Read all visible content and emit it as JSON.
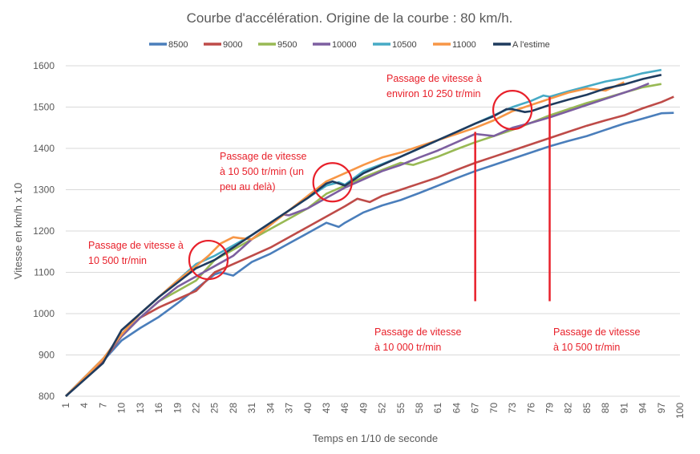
{
  "chart_data": {
    "type": "line",
    "title": "Courbe d'accélération. Origine de la courbe : 80 km/h.",
    "xlabel": "Temps en 1/10 de seconde",
    "ylabel": "Vitesse en km/h x 10",
    "xlim": [
      1,
      100
    ],
    "ylim": [
      800,
      1600
    ],
    "yticks": [
      800,
      900,
      1000,
      1100,
      1200,
      1300,
      1400,
      1500,
      1600
    ],
    "xticks": [
      1,
      4,
      7,
      10,
      13,
      16,
      19,
      22,
      25,
      28,
      31,
      34,
      37,
      40,
      43,
      46,
      49,
      52,
      55,
      58,
      61,
      64,
      67,
      70,
      73,
      76,
      79,
      82,
      85,
      88,
      91,
      94,
      97,
      100
    ],
    "grid": true,
    "legend_position": "top",
    "series": [
      {
        "name": "8500",
        "color": "#4a7ebb",
        "x": [
          1,
          4,
          7,
          10,
          13,
          16,
          19,
          22,
          25,
          26,
          28,
          31,
          34,
          37,
          40,
          43,
          45,
          46,
          49,
          52,
          55,
          58,
          61,
          64,
          67,
          70,
          73,
          76,
          79,
          82,
          85,
          88,
          91,
          94,
          97,
          99
        ],
        "y": [
          800,
          845,
          885,
          935,
          965,
          992,
          1025,
          1060,
          1095,
          1100,
          1092,
          1125,
          1145,
          1170,
          1195,
          1220,
          1210,
          1220,
          1245,
          1262,
          1275,
          1292,
          1310,
          1328,
          1345,
          1360,
          1375,
          1390,
          1405,
          1418,
          1430,
          1445,
          1460,
          1472,
          1485,
          1486
        ]
      },
      {
        "name": "9000",
        "color": "#be4b48",
        "x": [
          1,
          4,
          7,
          10,
          13,
          16,
          19,
          22,
          25,
          28,
          31,
          34,
          37,
          40,
          43,
          46,
          48,
          50,
          52,
          55,
          58,
          61,
          64,
          67,
          70,
          73,
          76,
          79,
          82,
          85,
          88,
          91,
          94,
          97,
          99
        ],
        "y": [
          800,
          845,
          885,
          945,
          990,
          1015,
          1035,
          1055,
          1100,
          1120,
          1140,
          1160,
          1185,
          1210,
          1235,
          1260,
          1278,
          1270,
          1285,
          1300,
          1315,
          1330,
          1348,
          1365,
          1380,
          1395,
          1410,
          1425,
          1440,
          1455,
          1468,
          1480,
          1497,
          1512,
          1525
        ]
      },
      {
        "name": "9500",
        "color": "#98b954",
        "x": [
          1,
          4,
          7,
          10,
          13,
          16,
          19,
          22,
          25,
          28,
          31,
          34,
          37,
          40,
          43,
          46,
          49,
          52,
          55,
          57,
          61,
          64,
          67,
          70,
          73,
          76,
          79,
          82,
          85,
          88,
          91,
          94,
          97
        ],
        "y": [
          800,
          845,
          890,
          945,
          990,
          1030,
          1055,
          1080,
          1130,
          1155,
          1180,
          1205,
          1230,
          1255,
          1290,
          1310,
          1330,
          1348,
          1365,
          1360,
          1380,
          1398,
          1415,
          1430,
          1445,
          1462,
          1480,
          1495,
          1510,
          1522,
          1535,
          1548,
          1556
        ]
      },
      {
        "name": "10000",
        "color": "#7d5fa0",
        "x": [
          1,
          4,
          7,
          10,
          13,
          16,
          19,
          22,
          25,
          28,
          31,
          34,
          36,
          37,
          40,
          43,
          46,
          49,
          52,
          55,
          58,
          61,
          64,
          67,
          70,
          73,
          76,
          79,
          82,
          85,
          88,
          91,
          93,
          95
        ],
        "y": [
          800,
          845,
          890,
          945,
          990,
          1030,
          1065,
          1090,
          1115,
          1140,
          1180,
          1215,
          1240,
          1238,
          1255,
          1280,
          1305,
          1325,
          1345,
          1360,
          1378,
          1395,
          1415,
          1435,
          1430,
          1450,
          1462,
          1475,
          1490,
          1505,
          1520,
          1535,
          1545,
          1557
        ]
      },
      {
        "name": "10500",
        "color": "#46aac5",
        "x": [
          1,
          4,
          7,
          10,
          13,
          16,
          19,
          22,
          25,
          28,
          31,
          34,
          37,
          40,
          43,
          45,
          46,
          49,
          52,
          55,
          58,
          61,
          64,
          67,
          70,
          73,
          76,
          78,
          79,
          82,
          85,
          88,
          91,
          94,
          97
        ],
        "y": [
          800,
          845,
          890,
          950,
          1000,
          1040,
          1080,
          1120,
          1140,
          1165,
          1190,
          1220,
          1250,
          1280,
          1310,
          1318,
          1312,
          1345,
          1362,
          1380,
          1400,
          1420,
          1440,
          1460,
          1480,
          1500,
          1515,
          1528,
          1525,
          1538,
          1550,
          1562,
          1570,
          1582,
          1590
        ]
      },
      {
        "name": "11000",
        "color": "#f79646",
        "x": [
          1,
          4,
          7,
          10,
          13,
          16,
          19,
          22,
          24,
          26,
          28,
          29,
          31,
          34,
          37,
          40,
          43,
          46,
          49,
          52,
          55,
          58,
          61,
          64,
          67,
          70,
          73,
          76,
          79,
          82,
          85,
          88,
          91
        ],
        "y": [
          800,
          845,
          890,
          950,
          1000,
          1040,
          1080,
          1115,
          1140,
          1170,
          1185,
          1183,
          1180,
          1215,
          1250,
          1285,
          1320,
          1340,
          1360,
          1378,
          1390,
          1405,
          1420,
          1435,
          1450,
          1468,
          1490,
          1505,
          1520,
          1535,
          1545,
          1540,
          1560
        ]
      },
      {
        "name": "A l'estime",
        "color": "#1f3b5e",
        "x": [
          1,
          4,
          7,
          10,
          13,
          16,
          19,
          22,
          25,
          28,
          31,
          34,
          37,
          40,
          43,
          44,
          46,
          49,
          52,
          55,
          58,
          61,
          64,
          67,
          70,
          72,
          73,
          75,
          76,
          79,
          82,
          85,
          88,
          91,
          94,
          97
        ],
        "y": [
          800,
          840,
          880,
          960,
          1000,
          1040,
          1075,
          1110,
          1130,
          1160,
          1190,
          1220,
          1250,
          1280,
          1315,
          1320,
          1310,
          1340,
          1360,
          1380,
          1400,
          1420,
          1440,
          1460,
          1478,
          1495,
          1495,
          1488,
          1490,
          1505,
          1518,
          1530,
          1545,
          1555,
          1568,
          1578
        ]
      }
    ],
    "annotations": [
      {
        "text": "Passage de vitesse à\n10 500 tr/min",
        "circle": {
          "x": 24,
          "y": 1130
        }
      },
      {
        "text": "Passage de vitesse\nà 10 500 tr/min (un\npeu au delà)",
        "circle": {
          "x": 44,
          "y": 1318
        }
      },
      {
        "text": "Passage de vitesse à\nenviron 10 250 tr/min",
        "circle": {
          "x": 73,
          "y": 1493
        }
      },
      {
        "text": "Passage de vitesse\nà 10 000 tr/min",
        "vline": {
          "x": 67,
          "y": [
            1030,
            1440
          ]
        }
      },
      {
        "text": "Passage de vitesse\nà 10 500 tr/min",
        "vline": {
          "x": 79,
          "y": [
            1030,
            1525
          ]
        }
      }
    ]
  }
}
